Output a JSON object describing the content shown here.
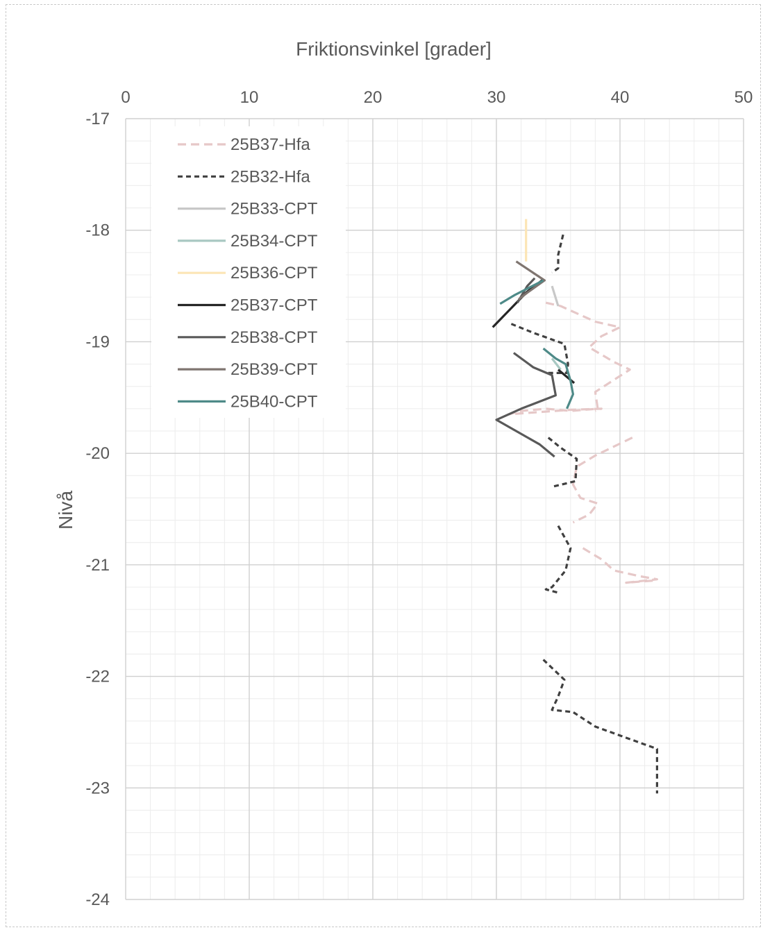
{
  "chart_data": {
    "type": "line",
    "title": "Friktionsvinkel [grader]",
    "xlabel": "Friktionsvinkel [grader]",
    "ylabel": "Nivå",
    "xlim": [
      0,
      50
    ],
    "ylim": [
      -24,
      -17
    ],
    "x_major_ticks": [
      0,
      10,
      20,
      30,
      40,
      50
    ],
    "x_minor_step": 2,
    "y_major_ticks": [
      -17,
      -18,
      -19,
      -20,
      -21,
      -22,
      -23,
      -24
    ],
    "y_minor_step": 0.2,
    "x_axis_position": "top",
    "grid": true,
    "legend_position": "top-left",
    "series": [
      {
        "name": "25B37-Hfa",
        "color": "#e6c8c8",
        "dash": "dashed",
        "points": [
          [
            34.0,
            -18.65
          ],
          [
            35.2,
            -18.68
          ],
          [
            38.0,
            -18.82
          ],
          [
            40.0,
            -18.87
          ],
          [
            38.5,
            -18.95
          ],
          [
            37.5,
            -19.05
          ],
          [
            39.5,
            -19.18
          ],
          [
            40.8,
            -19.25
          ],
          [
            38.0,
            -19.45
          ],
          [
            38.2,
            -19.6
          ],
          [
            36.0,
            -19.62
          ],
          [
            34.0,
            -19.6
          ],
          [
            32.0,
            -19.62
          ],
          [
            31.0,
            -19.65
          ],
          [
            36.0,
            -19.61
          ],
          [
            38.5,
            -19.6
          ],
          [
            38.0,
            -19.62
          ]
        ]
      },
      {
        "name": "25B37-Hfa",
        "color": "#e6c8c8",
        "dash": "dashed",
        "points": [
          [
            41.0,
            -19.86
          ],
          [
            38.0,
            -20.02
          ],
          [
            36.5,
            -20.12
          ],
          [
            36.2,
            -20.28
          ],
          [
            36.8,
            -20.4
          ],
          [
            38.2,
            -20.45
          ],
          [
            37.5,
            -20.55
          ],
          [
            36.2,
            -20.62
          ]
        ]
      },
      {
        "name": "25B37-Hfa",
        "color": "#e6c8c8",
        "dash": "dashed",
        "points": [
          [
            37.0,
            -20.85
          ],
          [
            38.5,
            -20.95
          ],
          [
            39.5,
            -21.05
          ],
          [
            41.5,
            -21.1
          ],
          [
            43.0,
            -21.13
          ],
          [
            40.5,
            -21.16
          ],
          [
            42.8,
            -21.14
          ]
        ]
      },
      {
        "name": "25B32-Hfa",
        "color": "#404040",
        "dash": "dotted",
        "points": [
          [
            35.4,
            -18.04
          ],
          [
            35.0,
            -18.22
          ],
          [
            35.0,
            -18.34
          ],
          [
            34.5,
            -18.38
          ]
        ]
      },
      {
        "name": "25B32-Hfa",
        "color": "#404040",
        "dash": "dotted",
        "points": [
          [
            31.2,
            -18.84
          ],
          [
            33.0,
            -18.92
          ],
          [
            35.5,
            -19.02
          ],
          [
            35.8,
            -19.2
          ],
          [
            35.7,
            -19.28
          ],
          [
            34.0,
            -19.28
          ]
        ]
      },
      {
        "name": "25B32-Hfa",
        "color": "#404040",
        "dash": "dotted",
        "points": [
          [
            34.2,
            -19.86
          ],
          [
            35.2,
            -19.95
          ],
          [
            36.5,
            -20.05
          ],
          [
            36.4,
            -20.25
          ],
          [
            34.5,
            -20.3
          ]
        ]
      },
      {
        "name": "25B32-Hfa",
        "color": "#404040",
        "dash": "dotted",
        "points": [
          [
            35.0,
            -20.65
          ],
          [
            35.5,
            -20.75
          ],
          [
            36.0,
            -20.85
          ],
          [
            35.6,
            -21.05
          ],
          [
            34.5,
            -21.2
          ],
          [
            34.0,
            -21.22
          ],
          [
            35.0,
            -21.25
          ]
        ]
      },
      {
        "name": "25B32-Hfa",
        "color": "#404040",
        "dash": "dotted",
        "points": [
          [
            33.8,
            -21.85
          ],
          [
            35.5,
            -22.03
          ],
          [
            35.0,
            -22.18
          ],
          [
            34.5,
            -22.3
          ],
          [
            36.2,
            -22.32
          ],
          [
            38.0,
            -22.45
          ],
          [
            41.0,
            -22.57
          ],
          [
            43.0,
            -22.65
          ],
          [
            43.0,
            -22.85
          ],
          [
            43.0,
            -23.05
          ]
        ]
      },
      {
        "name": "25B33-CPT",
        "color": "#c8c8c8",
        "dash": "solid",
        "points": [
          [
            34.5,
            -18.5
          ],
          [
            35.0,
            -18.68
          ]
        ]
      },
      {
        "name": "25B34-CPT",
        "color": "#a8c8c2",
        "dash": "solid",
        "points": [
          [
            34.5,
            -19.15
          ],
          [
            35.2,
            -19.25
          ]
        ]
      },
      {
        "name": "25B36-CPT",
        "color": "#fce5b5",
        "dash": "solid",
        "points": [
          [
            32.4,
            -17.9
          ],
          [
            32.4,
            -18.28
          ]
        ]
      },
      {
        "name": "25B37-CPT",
        "color": "#262626",
        "dash": "solid",
        "points": [
          [
            29.7,
            -18.87
          ],
          [
            32.5,
            -18.55
          ],
          [
            33.1,
            -18.5
          ],
          [
            33.8,
            -18.44
          ]
        ]
      },
      {
        "name": "25B37-CPT",
        "color": "#262626",
        "dash": "solid",
        "points": [
          [
            35.0,
            -19.25
          ],
          [
            36.3,
            -19.37
          ]
        ]
      },
      {
        "name": "25B38-CPT",
        "color": "#595959",
        "dash": "solid",
        "points": [
          [
            31.4,
            -19.1
          ],
          [
            33.0,
            -19.23
          ],
          [
            34.5,
            -19.3
          ],
          [
            34.8,
            -19.48
          ],
          [
            32.0,
            -19.6
          ],
          [
            30.0,
            -19.7
          ],
          [
            33.5,
            -19.92
          ],
          [
            34.7,
            -20.03
          ]
        ]
      },
      {
        "name": "25B38-CPT",
        "color": "#595959",
        "dash": "solid",
        "points": [
          [
            31.7,
            -18.65
          ],
          [
            32.5,
            -18.5
          ],
          [
            33.1,
            -18.43
          ]
        ]
      },
      {
        "name": "25B39-CPT",
        "color": "#7f7570",
        "dash": "solid",
        "points": [
          [
            31.6,
            -18.28
          ],
          [
            33.9,
            -18.45
          ],
          [
            32.5,
            -18.56
          ],
          [
            31.8,
            -18.62
          ]
        ]
      },
      {
        "name": "25B40-CPT",
        "color": "#4e8a88",
        "dash": "solid",
        "points": [
          [
            30.3,
            -18.66
          ],
          [
            31.5,
            -18.58
          ],
          [
            33.8,
            -18.45
          ]
        ]
      },
      {
        "name": "25B40-CPT",
        "color": "#4e8a88",
        "dash": "solid",
        "points": [
          [
            33.8,
            -19.06
          ],
          [
            34.8,
            -19.15
          ],
          [
            35.6,
            -19.2
          ],
          [
            36.0,
            -19.35
          ],
          [
            36.2,
            -19.47
          ],
          [
            35.7,
            -19.6
          ]
        ]
      }
    ],
    "legend": [
      {
        "name": "25B37-Hfa",
        "color": "#e6c8c8",
        "dash": "dashed"
      },
      {
        "name": "25B32-Hfa",
        "color": "#404040",
        "dash": "dotted"
      },
      {
        "name": "25B33-CPT",
        "color": "#c8c8c8",
        "dash": "solid"
      },
      {
        "name": "25B34-CPT",
        "color": "#a8c8c2",
        "dash": "solid"
      },
      {
        "name": "25B36-CPT",
        "color": "#fce5b5",
        "dash": "solid"
      },
      {
        "name": "25B37-CPT",
        "color": "#262626",
        "dash": "solid"
      },
      {
        "name": "25B38-CPT",
        "color": "#595959",
        "dash": "solid"
      },
      {
        "name": "25B39-CPT",
        "color": "#7f7570",
        "dash": "solid"
      },
      {
        "name": "25B40-CPT",
        "color": "#4e8a88",
        "dash": "solid"
      }
    ]
  }
}
